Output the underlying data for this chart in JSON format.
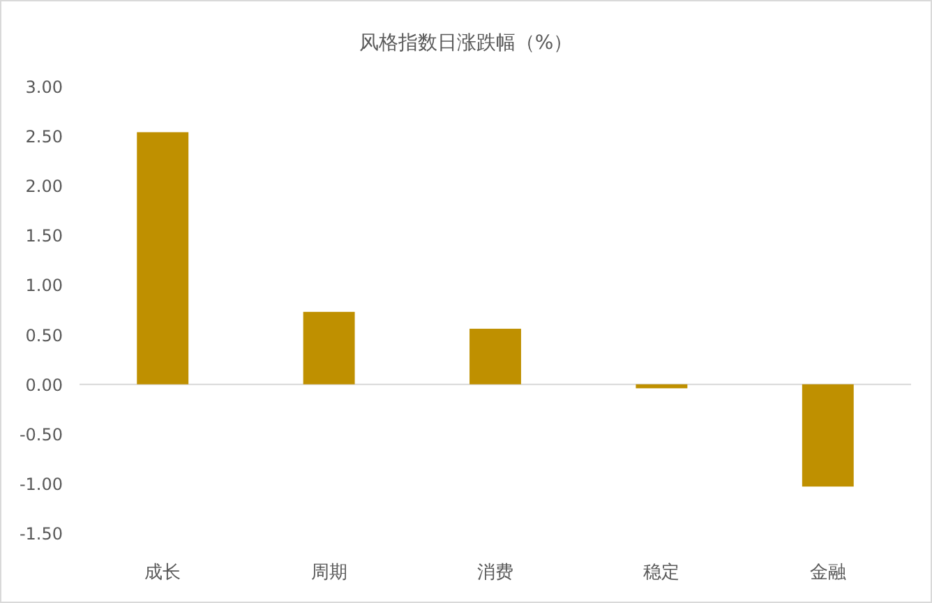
{
  "chart_data": {
    "type": "bar",
    "title": "风格指数日涨跌幅（%）",
    "categories": [
      "成长",
      "周期",
      "消费",
      "稳定",
      "金融"
    ],
    "values": [
      2.54,
      0.73,
      0.56,
      -0.04,
      -1.03
    ],
    "color": "#bf9000",
    "ylim": [
      -1.5,
      3.0
    ],
    "yticks": [
      {
        "value": 3.0,
        "label": "3.00"
      },
      {
        "value": 2.5,
        "label": "2.50"
      },
      {
        "value": 2.0,
        "label": "2.00"
      },
      {
        "value": 1.5,
        "label": "1.50"
      },
      {
        "value": 1.0,
        "label": "1.00"
      },
      {
        "value": 0.5,
        "label": "0.50"
      },
      {
        "value": 0.0,
        "label": "0.00"
      },
      {
        "value": -0.5,
        "label": "-0.50"
      },
      {
        "value": -1.0,
        "label": "-1.00"
      },
      {
        "value": -1.5,
        "label": "-1.50"
      }
    ]
  }
}
